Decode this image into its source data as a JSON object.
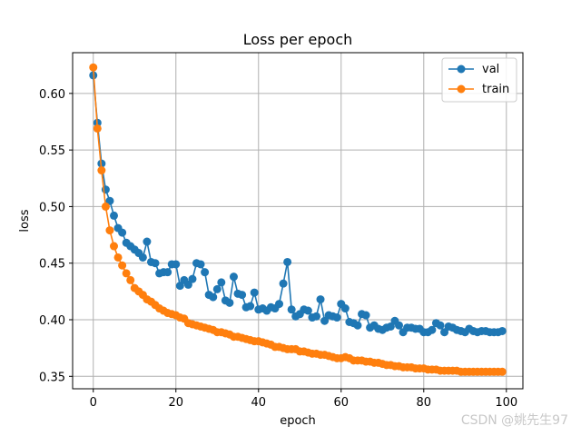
{
  "chart_data": {
    "type": "line",
    "title": "Loss per epoch",
    "xlabel": "epoch",
    "ylabel": "loss",
    "xlim": [
      -5,
      104
    ],
    "ylim": [
      0.339,
      0.636
    ],
    "xticks": [
      0,
      20,
      40,
      60,
      80,
      100
    ],
    "yticks": [
      0.35,
      0.4,
      0.45,
      0.5,
      0.55,
      0.6
    ],
    "ytick_labels": [
      "0.35",
      "0.40",
      "0.45",
      "0.50",
      "0.55",
      "0.60"
    ],
    "grid": true,
    "legend_position": "top-right",
    "series": [
      {
        "name": "val",
        "color": "#1f77b4",
        "values": [
          0.616,
          0.574,
          0.538,
          0.515,
          0.505,
          0.492,
          0.481,
          0.477,
          0.468,
          0.465,
          0.462,
          0.459,
          0.455,
          0.469,
          0.451,
          0.45,
          0.441,
          0.442,
          0.442,
          0.449,
          0.449,
          0.43,
          0.435,
          0.431,
          0.436,
          0.45,
          0.449,
          0.442,
          0.422,
          0.42,
          0.427,
          0.433,
          0.417,
          0.415,
          0.438,
          0.423,
          0.422,
          0.411,
          0.412,
          0.424,
          0.409,
          0.41,
          0.408,
          0.411,
          0.41,
          0.414,
          0.432,
          0.451,
          0.409,
          0.403,
          0.405,
          0.409,
          0.408,
          0.402,
          0.403,
          0.418,
          0.399,
          0.404,
          0.403,
          0.402,
          0.414,
          0.41,
          0.398,
          0.397,
          0.395,
          0.405,
          0.404,
          0.393,
          0.395,
          0.392,
          0.391,
          0.393,
          0.394,
          0.399,
          0.395,
          0.389,
          0.393,
          0.393,
          0.392,
          0.392,
          0.389,
          0.389,
          0.391,
          0.397,
          0.395,
          0.389,
          0.394,
          0.393,
          0.391,
          0.39,
          0.389,
          0.392,
          0.39,
          0.389,
          0.39,
          0.39,
          0.389,
          0.389,
          0.389,
          0.39
        ]
      },
      {
        "name": "train",
        "color": "#ff7f0e",
        "values": [
          0.623,
          0.569,
          0.532,
          0.5,
          0.479,
          0.465,
          0.455,
          0.448,
          0.441,
          0.435,
          0.428,
          0.425,
          0.422,
          0.418,
          0.416,
          0.413,
          0.41,
          0.408,
          0.406,
          0.405,
          0.404,
          0.402,
          0.401,
          0.397,
          0.396,
          0.395,
          0.394,
          0.393,
          0.392,
          0.391,
          0.389,
          0.389,
          0.388,
          0.387,
          0.385,
          0.385,
          0.384,
          0.383,
          0.382,
          0.381,
          0.381,
          0.38,
          0.379,
          0.378,
          0.376,
          0.376,
          0.375,
          0.374,
          0.374,
          0.374,
          0.372,
          0.372,
          0.371,
          0.37,
          0.37,
          0.369,
          0.369,
          0.368,
          0.367,
          0.366,
          0.366,
          0.367,
          0.366,
          0.364,
          0.364,
          0.364,
          0.363,
          0.363,
          0.362,
          0.362,
          0.361,
          0.36,
          0.36,
          0.359,
          0.359,
          0.358,
          0.358,
          0.358,
          0.357,
          0.357,
          0.357,
          0.356,
          0.356,
          0.356,
          0.355,
          0.355,
          0.355,
          0.355,
          0.355,
          0.354,
          0.354,
          0.354,
          0.354,
          0.354,
          0.354,
          0.354,
          0.354,
          0.354,
          0.354,
          0.354
        ]
      }
    ]
  },
  "watermark": "CSDN @姚先生97"
}
